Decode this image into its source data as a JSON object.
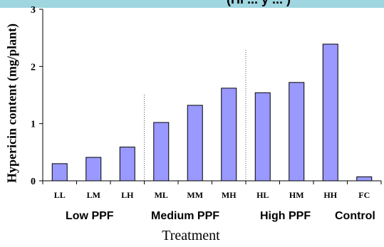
{
  "header_fragment": "(Hi ... y ... )",
  "chart_data": {
    "type": "bar",
    "categories": [
      "LL",
      "LM",
      "LH",
      "ML",
      "MM",
      "MH",
      "HL",
      "HM",
      "HH",
      "FC"
    ],
    "values": [
      0.3,
      0.41,
      0.59,
      1.02,
      1.32,
      1.62,
      1.54,
      1.72,
      2.39,
      0.07
    ],
    "groups": [
      "Low PPF",
      "Medium PPF",
      "High PPF",
      "Control"
    ],
    "xlabel": "Treatment",
    "ylabel": "Hypericin content (mg/plant)",
    "ylim": [
      0,
      3
    ],
    "yticks": [
      "0",
      "1",
      "2",
      "3"
    ],
    "bar_color": "#9999ff",
    "separators_after": [
      3,
      6
    ],
    "grid": false
  }
}
